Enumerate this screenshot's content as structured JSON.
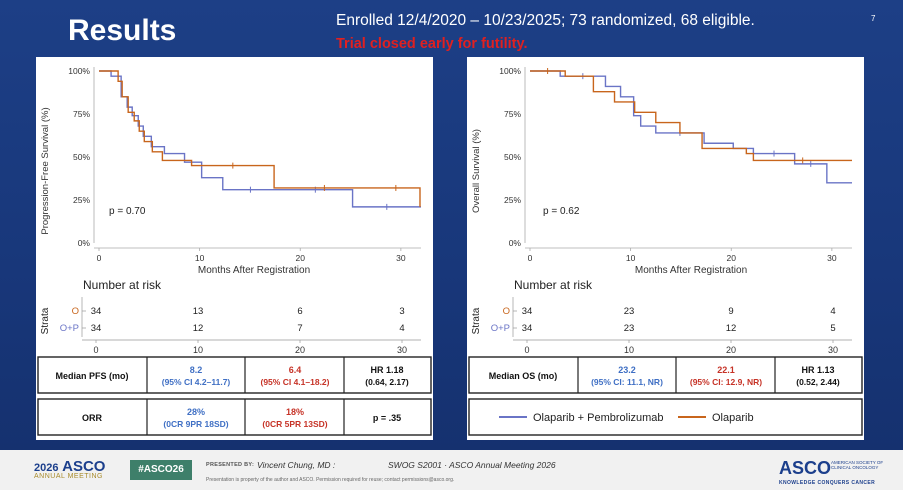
{
  "slide": {
    "title": "Results",
    "enrollment": "Enrolled 12/4/2020 – 10/23/2025; 73 randomized, 68 eligible.",
    "closed_note": "Trial closed early for futility.",
    "slide_number": "7"
  },
  "colors": {
    "combo": "#6a74c6",
    "olaparib": "#c8651c",
    "combo_text": "#3f6fc4",
    "olaparib_text": "#c63226"
  },
  "chart_data": [
    {
      "type": "line",
      "name": "pfs",
      "ylabel": "Progression-Free Survival (%)",
      "xlabel": "Months After Registration",
      "x_ticks": [
        "0",
        "10",
        "20",
        "30"
      ],
      "y_ticks": [
        "0%",
        "25%",
        "50%",
        "75%",
        "100%"
      ],
      "xlim": [
        0,
        32
      ],
      "ylim": [
        0,
        100
      ],
      "annotation": "p = 0.70",
      "series": [
        {
          "name": "Olaparib + Pembrolizumab",
          "color": "#6a74c6",
          "x": [
            0,
            1.2,
            2.2,
            2.8,
            3.3,
            3.9,
            4.4,
            5.2,
            6.5,
            8.5,
            10.2,
            12.3,
            17.8,
            25.2,
            32
          ],
          "y": [
            100,
            97,
            85,
            79,
            74,
            68,
            62,
            56,
            52,
            47,
            38,
            31,
            31,
            21,
            21
          ]
        },
        {
          "name": "Olaparib",
          "color": "#c8651c",
          "x": [
            0,
            1.9,
            2.3,
            2.9,
            3.5,
            4.0,
            4.5,
            5.3,
            6.3,
            9.2,
            17.4,
            27.4,
            31.6,
            31.9
          ],
          "y": [
            100,
            94,
            85,
            76,
            71,
            65,
            59,
            53,
            48,
            45,
            32,
            32,
            32,
            21
          ]
        }
      ],
      "risk_table": {
        "title": "Number at risk",
        "strata_label": "Strata",
        "rows": [
          {
            "label": "O",
            "values": [
              "34",
              "13",
              "6",
              "3"
            ]
          },
          {
            "label": "O+P",
            "values": [
              "34",
              "12",
              "7",
              "4"
            ]
          }
        ],
        "x_ticks": [
          "0",
          "10",
          "20",
          "30"
        ]
      },
      "summary": {
        "row1": {
          "label": "Median PFS (mo)",
          "combo": "8.2",
          "combo_ci": "(95% CI 4.2–11.7)",
          "olaparib": "6.4",
          "olaparib_ci": "(95% CI 4.1–18.2)",
          "stat": "HR 1.18",
          "stat_ci": "(0.64, 2.17)"
        },
        "row2": {
          "label": "ORR",
          "combo": "28%",
          "combo_ci": "(0CR 9PR 18SD)",
          "olaparib": "18%",
          "olaparib_ci": "(0CR 5PR 13SD)",
          "stat": "p = .35"
        }
      }
    },
    {
      "type": "line",
      "name": "os",
      "ylabel": "Overall Survival (%)",
      "xlabel": "Months After Registration",
      "x_ticks": [
        "0",
        "10",
        "20",
        "30"
      ],
      "y_ticks": [
        "0%",
        "25%",
        "50%",
        "75%",
        "100%"
      ],
      "xlim": [
        0,
        32
      ],
      "ylim": [
        0,
        100
      ],
      "annotation": "p = 0.62",
      "series": [
        {
          "name": "Olaparib + Pembrolizumab",
          "color": "#6a74c6",
          "x": [
            0,
            3.0,
            7.5,
            9.0,
            10.3,
            11.0,
            12.5,
            17.3,
            20.2,
            22.2,
            26.3,
            29.5,
            32
          ],
          "y": [
            100,
            97,
            91,
            85,
            74,
            68,
            64,
            58,
            55,
            52,
            46,
            35,
            35
          ]
        },
        {
          "name": "Olaparib",
          "color": "#c8651c",
          "x": [
            0,
            3.5,
            6.3,
            8.4,
            10.4,
            12.5,
            14.9,
            17.1,
            20.0,
            21.5,
            22.2,
            32
          ],
          "y": [
            100,
            97,
            88,
            82,
            76,
            70,
            64,
            55,
            55,
            52,
            48,
            48
          ]
        }
      ],
      "risk_table": {
        "title": "Number at risk",
        "strata_label": "Strata",
        "rows": [
          {
            "label": "O",
            "values": [
              "34",
              "23",
              "9",
              "4"
            ]
          },
          {
            "label": "O+P",
            "values": [
              "34",
              "23",
              "12",
              "5"
            ]
          }
        ],
        "x_ticks": [
          "0",
          "10",
          "20",
          "30"
        ]
      },
      "summary": {
        "row1": {
          "label": "Median OS (mo)",
          "combo": "23.2",
          "combo_ci": "(95% CI: 11.1, NR)",
          "olaparib": "22.1",
          "olaparib_ci": "(95% CI: 12.9, NR)",
          "stat": "HR 1.13",
          "stat_ci": "(0.52, 2.44)"
        }
      },
      "legend": [
        "Olaparib + Pembrolizumab",
        "Olaparib"
      ]
    }
  ],
  "footer": {
    "logo_text": "ASCO",
    "logo_year": "2026",
    "logo_sub": "ANNUAL MEETING",
    "hashtag": "#ASCO26",
    "presented_label": "PRESENTED BY:",
    "presenter": "Vincent Chung, MD :",
    "meeting": "SWOG S2001 · ASCO Annual Meeting 2026",
    "disclaimer": "Presentation is property of the author and ASCO. Permission required for reuse; contact permissions@asco.org.",
    "right_logo": "ASCO",
    "right_logo_tiny": "AMERICAN SOCIETY OF CLINICAL ONCOLOGY",
    "tagline": "KNOWLEDGE CONQUERS CANCER"
  }
}
